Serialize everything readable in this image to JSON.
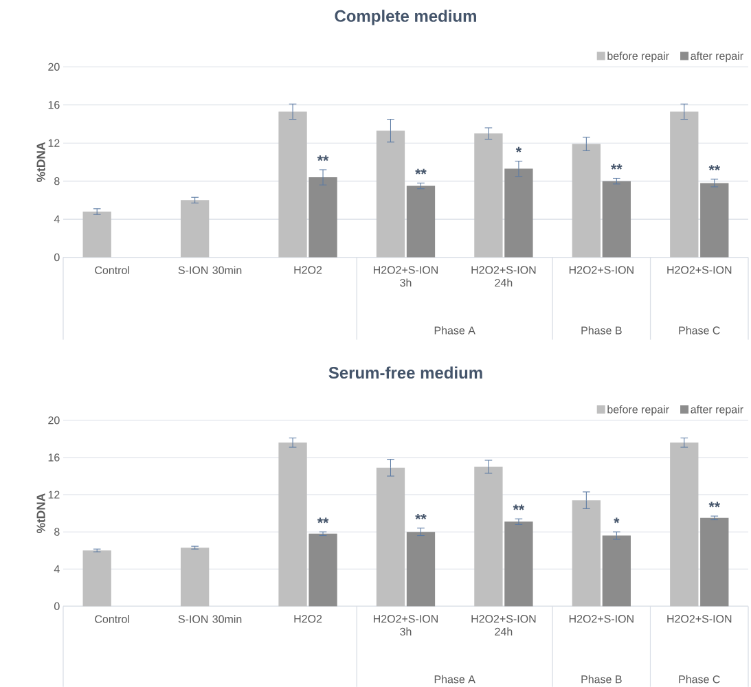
{
  "chart_data": [
    {
      "type": "bar",
      "title": "Complete medium",
      "ylabel": "%tDNA",
      "categories": [
        "Control",
        "S-ION 30min",
        "H2O2",
        "H2O2+S-ION 3h",
        "H2O2+S-ION 24h",
        "H2O2+S-ION",
        "H2O2+S-ION"
      ],
      "series": [
        {
          "name": "before repair",
          "color": "#bfbfbf",
          "values": [
            4.8,
            6.0,
            15.3,
            13.3,
            13.0,
            11.9,
            15.3
          ],
          "errors": [
            0.3,
            0.3,
            0.8,
            1.2,
            0.6,
            0.7,
            0.8
          ]
        },
        {
          "name": "after repair",
          "color": "#8c8c8c",
          "values": [
            null,
            null,
            8.4,
            7.5,
            9.3,
            8.0,
            7.8
          ],
          "errors": [
            null,
            null,
            0.8,
            0.3,
            0.8,
            0.3,
            0.4
          ],
          "value_labels": [
            null,
            null,
            "**",
            "**",
            "*",
            "**",
            "**"
          ]
        }
      ],
      "ylim": [
        0,
        20
      ],
      "yticks": [
        0,
        4,
        8,
        12,
        16,
        20
      ],
      "grid": "y",
      "legend": "top right",
      "annotations": [
        "Phase A",
        "Phase B",
        "Phase C"
      ]
    },
    {
      "type": "bar",
      "title": "Serum-free medium",
      "ylabel": "%tDNA",
      "categories": [
        "Control",
        "S-ION 30min",
        "H2O2",
        "H2O2+S-ION 3h",
        "H2O2+S-ION 24h",
        "H2O2+S-ION",
        "H2O2+S-ION"
      ],
      "series": [
        {
          "name": "before repair",
          "color": "#bfbfbf",
          "values": [
            6.0,
            6.3,
            17.6,
            14.9,
            15.0,
            11.4,
            17.6
          ],
          "errors": [
            0.15,
            0.15,
            0.5,
            0.9,
            0.7,
            0.9,
            0.5
          ]
        },
        {
          "name": "after repair",
          "color": "#8c8c8c",
          "values": [
            null,
            null,
            7.8,
            8.0,
            9.1,
            7.6,
            9.5
          ],
          "errors": [
            null,
            null,
            0.2,
            0.4,
            0.3,
            0.4,
            0.2
          ],
          "value_labels": [
            null,
            null,
            "**",
            "**",
            "**",
            "*",
            "**"
          ]
        }
      ],
      "ylim": [
        0,
        20
      ],
      "yticks": [
        0,
        4,
        8,
        12,
        16,
        20
      ],
      "grid": "y",
      "legend": "top right",
      "annotations": [
        "Phase A",
        "Phase B",
        "Phase C"
      ]
    }
  ]
}
